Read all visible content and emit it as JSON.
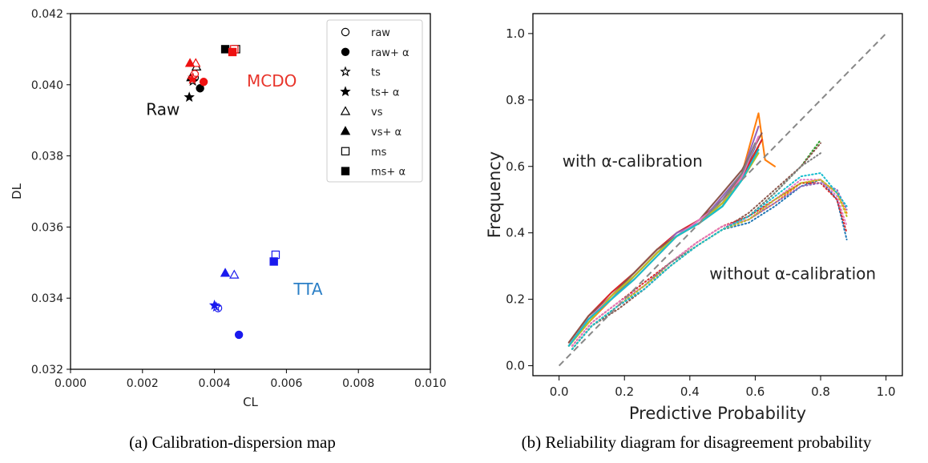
{
  "captions": {
    "a": "(a) Calibration-dispersion map",
    "b": "(b) Reliability diagram for disagreement probability"
  },
  "chart_data": [
    {
      "type": "scatter",
      "xlabel": "CL",
      "ylabel": "DL",
      "xlim": [
        0.0,
        0.01
      ],
      "ylim": [
        0.032,
        0.042
      ],
      "xticks": [
        "0.000",
        "0.002",
        "0.004",
        "0.006",
        "0.008",
        "0.010"
      ],
      "yticks": [
        "0.032",
        "0.034",
        "0.036",
        "0.038",
        "0.040",
        "0.042"
      ],
      "grid": false,
      "legend_position": "top-right",
      "legend": [
        {
          "label": "raw",
          "marker": "circle",
          "filled": false
        },
        {
          "label": "raw+ α",
          "marker": "circle",
          "filled": true
        },
        {
          "label": "ts",
          "marker": "star",
          "filled": false
        },
        {
          "label": "ts+ α",
          "marker": "star",
          "filled": true
        },
        {
          "label": "vs",
          "marker": "triangle",
          "filled": false
        },
        {
          "label": "vs+ α",
          "marker": "triangle",
          "filled": true
        },
        {
          "label": "ms",
          "marker": "square",
          "filled": false
        },
        {
          "label": "ms+ α",
          "marker": "square",
          "filled": true
        }
      ],
      "annotations": [
        {
          "text": "MCDO",
          "x": 0.0049,
          "y": 0.03995,
          "color": "#e8352b"
        },
        {
          "text": "Raw",
          "x": 0.0021,
          "y": 0.03915,
          "color": "#111111"
        },
        {
          "text": "TTA",
          "x": 0.0062,
          "y": 0.0341,
          "color": "#2b7fc6"
        }
      ],
      "groups": [
        {
          "name": "Raw",
          "color": "#000000",
          "points": [
            {
              "method": "raw",
              "x": 0.00345,
              "y": 0.0402
            },
            {
              "method": "raw+ α",
              "x": 0.0036,
              "y": 0.0399
            },
            {
              "method": "ts",
              "x": 0.0034,
              "y": 0.0401
            },
            {
              "method": "ts+ α",
              "x": 0.0033,
              "y": 0.03965
            },
            {
              "method": "vs",
              "x": 0.0035,
              "y": 0.0405
            },
            {
              "method": "vs+ α",
              "x": 0.00335,
              "y": 0.0402
            },
            {
              "method": "ms",
              "x": 0.0046,
              "y": 0.041
            },
            {
              "method": "ms+ α",
              "x": 0.0043,
              "y": 0.041
            }
          ]
        },
        {
          "name": "MCDO",
          "color": "#ee1111",
          "points": [
            {
              "method": "raw",
              "x": 0.00345,
              "y": 0.0403
            },
            {
              "method": "raw+ α",
              "x": 0.0037,
              "y": 0.04008
            },
            {
              "method": "ts",
              "x": 0.0034,
              "y": 0.0402
            },
            {
              "method": "ts+ α",
              "x": 0.00338,
              "y": 0.04015
            },
            {
              "method": "vs",
              "x": 0.00348,
              "y": 0.0406
            },
            {
              "method": "vs+ α",
              "x": 0.00332,
              "y": 0.0406
            },
            {
              "method": "ms",
              "x": 0.00455,
              "y": 0.041
            },
            {
              "method": "ms+ α",
              "x": 0.0045,
              "y": 0.04092
            }
          ]
        },
        {
          "name": "TTA",
          "color": "#1a1aee",
          "points": [
            {
              "method": "raw",
              "x": 0.0041,
              "y": 0.03372
            },
            {
              "method": "raw+ α",
              "x": 0.00468,
              "y": 0.03297
            },
            {
              "method": "ts",
              "x": 0.00405,
              "y": 0.03375
            },
            {
              "method": "ts+ α",
              "x": 0.004,
              "y": 0.0338
            },
            {
              "method": "vs",
              "x": 0.00455,
              "y": 0.03465
            },
            {
              "method": "vs+ α",
              "x": 0.0043,
              "y": 0.0347
            },
            {
              "method": "ms",
              "x": 0.0057,
              "y": 0.03522
            },
            {
              "method": "ms+ α",
              "x": 0.00565,
              "y": 0.03503
            }
          ]
        }
      ]
    },
    {
      "type": "line",
      "xlabel": "Predictive Probability",
      "ylabel": "Frequency",
      "xlim": [
        -0.08,
        1.05
      ],
      "ylim": [
        -0.03,
        1.06
      ],
      "xticks": [
        "0.0",
        "0.2",
        "0.4",
        "0.6",
        "0.8",
        "1.0"
      ],
      "yticks": [
        "0.0",
        "0.2",
        "0.4",
        "0.6",
        "0.8",
        "1.0"
      ],
      "grid": false,
      "annotations": [
        {
          "text": "with α-calibration",
          "x": 0.01,
          "y": 0.6
        },
        {
          "text": "without α-calibration",
          "x": 0.46,
          "y": 0.26
        }
      ],
      "diagonal": {
        "x": [
          0.0,
          1.0
        ],
        "y": [
          0.0,
          1.0
        ],
        "style": "dashed",
        "color": "#888888"
      },
      "series": [
        {
          "group": "with",
          "style": "solid",
          "color": "#1f77b4",
          "x": [
            0.03,
            0.09,
            0.16,
            0.23,
            0.3,
            0.36,
            0.43,
            0.5,
            0.56,
            0.6
          ],
          "y": [
            0.06,
            0.14,
            0.2,
            0.27,
            0.34,
            0.39,
            0.43,
            0.49,
            0.57,
            0.66
          ]
        },
        {
          "group": "with",
          "style": "solid",
          "color": "#ff7f0e",
          "x": [
            0.03,
            0.09,
            0.16,
            0.23,
            0.3,
            0.36,
            0.43,
            0.5,
            0.56,
            0.61,
            0.63,
            0.66
          ],
          "y": [
            0.06,
            0.13,
            0.2,
            0.26,
            0.33,
            0.39,
            0.43,
            0.48,
            0.58,
            0.76,
            0.62,
            0.6
          ]
        },
        {
          "group": "with",
          "style": "solid",
          "color": "#2ca02c",
          "x": [
            0.03,
            0.09,
            0.16,
            0.23,
            0.3,
            0.36,
            0.43,
            0.5,
            0.56,
            0.61
          ],
          "y": [
            0.06,
            0.14,
            0.21,
            0.27,
            0.34,
            0.39,
            0.43,
            0.48,
            0.56,
            0.66
          ]
        },
        {
          "group": "with",
          "style": "solid",
          "color": "#d62728",
          "x": [
            0.03,
            0.09,
            0.16,
            0.23,
            0.3,
            0.36,
            0.43,
            0.5,
            0.56,
            0.62
          ],
          "y": [
            0.07,
            0.15,
            0.22,
            0.28,
            0.35,
            0.4,
            0.44,
            0.5,
            0.57,
            0.68
          ]
        },
        {
          "group": "with",
          "style": "solid",
          "color": "#9467bd",
          "x": [
            0.03,
            0.09,
            0.16,
            0.23,
            0.3,
            0.36,
            0.43,
            0.5,
            0.56,
            0.61
          ],
          "y": [
            0.06,
            0.14,
            0.21,
            0.27,
            0.34,
            0.4,
            0.43,
            0.51,
            0.58,
            0.72
          ]
        },
        {
          "group": "with",
          "style": "solid",
          "color": "#8c564b",
          "x": [
            0.03,
            0.09,
            0.16,
            0.23,
            0.3,
            0.36,
            0.43,
            0.5,
            0.56,
            0.62
          ],
          "y": [
            0.07,
            0.15,
            0.21,
            0.28,
            0.35,
            0.39,
            0.44,
            0.52,
            0.59,
            0.7
          ]
        },
        {
          "group": "with",
          "style": "solid",
          "color": "#e377c2",
          "x": [
            0.03,
            0.09,
            0.16,
            0.23,
            0.3,
            0.36,
            0.43,
            0.5,
            0.56,
            0.61
          ],
          "y": [
            0.06,
            0.14,
            0.21,
            0.27,
            0.34,
            0.39,
            0.44,
            0.49,
            0.57,
            0.69
          ]
        },
        {
          "group": "with",
          "style": "solid",
          "color": "#7f7f7f",
          "x": [
            0.03,
            0.09,
            0.16,
            0.23,
            0.3,
            0.36,
            0.43,
            0.5,
            0.56,
            0.6
          ],
          "y": [
            0.06,
            0.14,
            0.2,
            0.27,
            0.34,
            0.39,
            0.43,
            0.5,
            0.58,
            0.67
          ]
        },
        {
          "group": "with",
          "style": "solid",
          "color": "#bcbd22",
          "x": [
            0.03,
            0.09,
            0.16,
            0.23,
            0.3,
            0.36,
            0.43,
            0.5,
            0.56,
            0.61
          ],
          "y": [
            0.06,
            0.13,
            0.21,
            0.27,
            0.34,
            0.39,
            0.43,
            0.49,
            0.56,
            0.64
          ]
        },
        {
          "group": "with",
          "style": "solid",
          "color": "#17becf",
          "x": [
            0.03,
            0.09,
            0.16,
            0.23,
            0.3,
            0.36,
            0.43,
            0.5,
            0.56,
            0.61
          ],
          "y": [
            0.06,
            0.14,
            0.2,
            0.26,
            0.33,
            0.39,
            0.43,
            0.48,
            0.56,
            0.65
          ]
        },
        {
          "group": "without",
          "style": "dotted",
          "color": "#1f77b4",
          "x": [
            0.04,
            0.1,
            0.18,
            0.26,
            0.34,
            0.42,
            0.5,
            0.58,
            0.66,
            0.74,
            0.8,
            0.85,
            0.88
          ],
          "y": [
            0.05,
            0.12,
            0.18,
            0.23,
            0.3,
            0.36,
            0.41,
            0.43,
            0.48,
            0.54,
            0.56,
            0.5,
            0.38
          ]
        },
        {
          "group": "without",
          "style": "dotted",
          "color": "#ff7f0e",
          "x": [
            0.04,
            0.1,
            0.18,
            0.26,
            0.34,
            0.42,
            0.5,
            0.58,
            0.66,
            0.74,
            0.8,
            0.85,
            0.88
          ],
          "y": [
            0.06,
            0.13,
            0.19,
            0.24,
            0.31,
            0.37,
            0.42,
            0.44,
            0.49,
            0.55,
            0.56,
            0.52,
            0.46
          ]
        },
        {
          "group": "without",
          "style": "dotted",
          "color": "#2ca02c",
          "x": [
            0.04,
            0.1,
            0.18,
            0.26,
            0.34,
            0.42,
            0.5,
            0.58,
            0.66,
            0.74,
            0.8
          ],
          "y": [
            0.05,
            0.12,
            0.18,
            0.24,
            0.31,
            0.36,
            0.41,
            0.45,
            0.52,
            0.6,
            0.68
          ]
        },
        {
          "group": "without",
          "style": "dotted",
          "color": "#d62728",
          "x": [
            0.04,
            0.1,
            0.18,
            0.26,
            0.34,
            0.42,
            0.5,
            0.58,
            0.66,
            0.74,
            0.8,
            0.85,
            0.88
          ],
          "y": [
            0.06,
            0.13,
            0.19,
            0.25,
            0.31,
            0.37,
            0.42,
            0.45,
            0.5,
            0.55,
            0.55,
            0.5,
            0.4
          ]
        },
        {
          "group": "without",
          "style": "dotted",
          "color": "#9467bd",
          "x": [
            0.04,
            0.1,
            0.18,
            0.26,
            0.34,
            0.42,
            0.5,
            0.58,
            0.66,
            0.74,
            0.8,
            0.85,
            0.88
          ],
          "y": [
            0.05,
            0.12,
            0.18,
            0.23,
            0.3,
            0.36,
            0.41,
            0.44,
            0.49,
            0.54,
            0.55,
            0.53,
            0.47
          ]
        },
        {
          "group": "without",
          "style": "dotted",
          "color": "#8c564b",
          "x": [
            0.04,
            0.1,
            0.18,
            0.26,
            0.34,
            0.42,
            0.5,
            0.58,
            0.66,
            0.74,
            0.8
          ],
          "y": [
            0.05,
            0.12,
            0.17,
            0.23,
            0.3,
            0.36,
            0.41,
            0.46,
            0.53,
            0.6,
            0.67
          ]
        },
        {
          "group": "without",
          "style": "dotted",
          "color": "#e377c2",
          "x": [
            0.04,
            0.1,
            0.18,
            0.26,
            0.34,
            0.42,
            0.5,
            0.58,
            0.66,
            0.74,
            0.8,
            0.85,
            0.88
          ],
          "y": [
            0.06,
            0.13,
            0.19,
            0.24,
            0.31,
            0.37,
            0.42,
            0.44,
            0.5,
            0.56,
            0.56,
            0.51,
            0.42
          ]
        },
        {
          "group": "without",
          "style": "dotted",
          "color": "#7f7f7f",
          "x": [
            0.04,
            0.1,
            0.18,
            0.26,
            0.34,
            0.42,
            0.5,
            0.58,
            0.66,
            0.74,
            0.8
          ],
          "y": [
            0.05,
            0.12,
            0.18,
            0.24,
            0.31,
            0.36,
            0.41,
            0.45,
            0.52,
            0.6,
            0.64
          ]
        },
        {
          "group": "without",
          "style": "dotted",
          "color": "#bcbd22",
          "x": [
            0.04,
            0.1,
            0.18,
            0.26,
            0.34,
            0.42,
            0.5,
            0.58,
            0.66,
            0.74,
            0.8,
            0.85,
            0.88
          ],
          "y": [
            0.05,
            0.12,
            0.18,
            0.24,
            0.3,
            0.36,
            0.41,
            0.44,
            0.5,
            0.55,
            0.56,
            0.52,
            0.45
          ]
        },
        {
          "group": "without",
          "style": "dotted",
          "color": "#17becf",
          "x": [
            0.04,
            0.1,
            0.18,
            0.26,
            0.34,
            0.42,
            0.5,
            0.58,
            0.66,
            0.74,
            0.8,
            0.85,
            0.88
          ],
          "y": [
            0.05,
            0.12,
            0.18,
            0.23,
            0.3,
            0.36,
            0.41,
            0.45,
            0.51,
            0.57,
            0.58,
            0.52,
            0.48
          ]
        }
      ]
    }
  ]
}
